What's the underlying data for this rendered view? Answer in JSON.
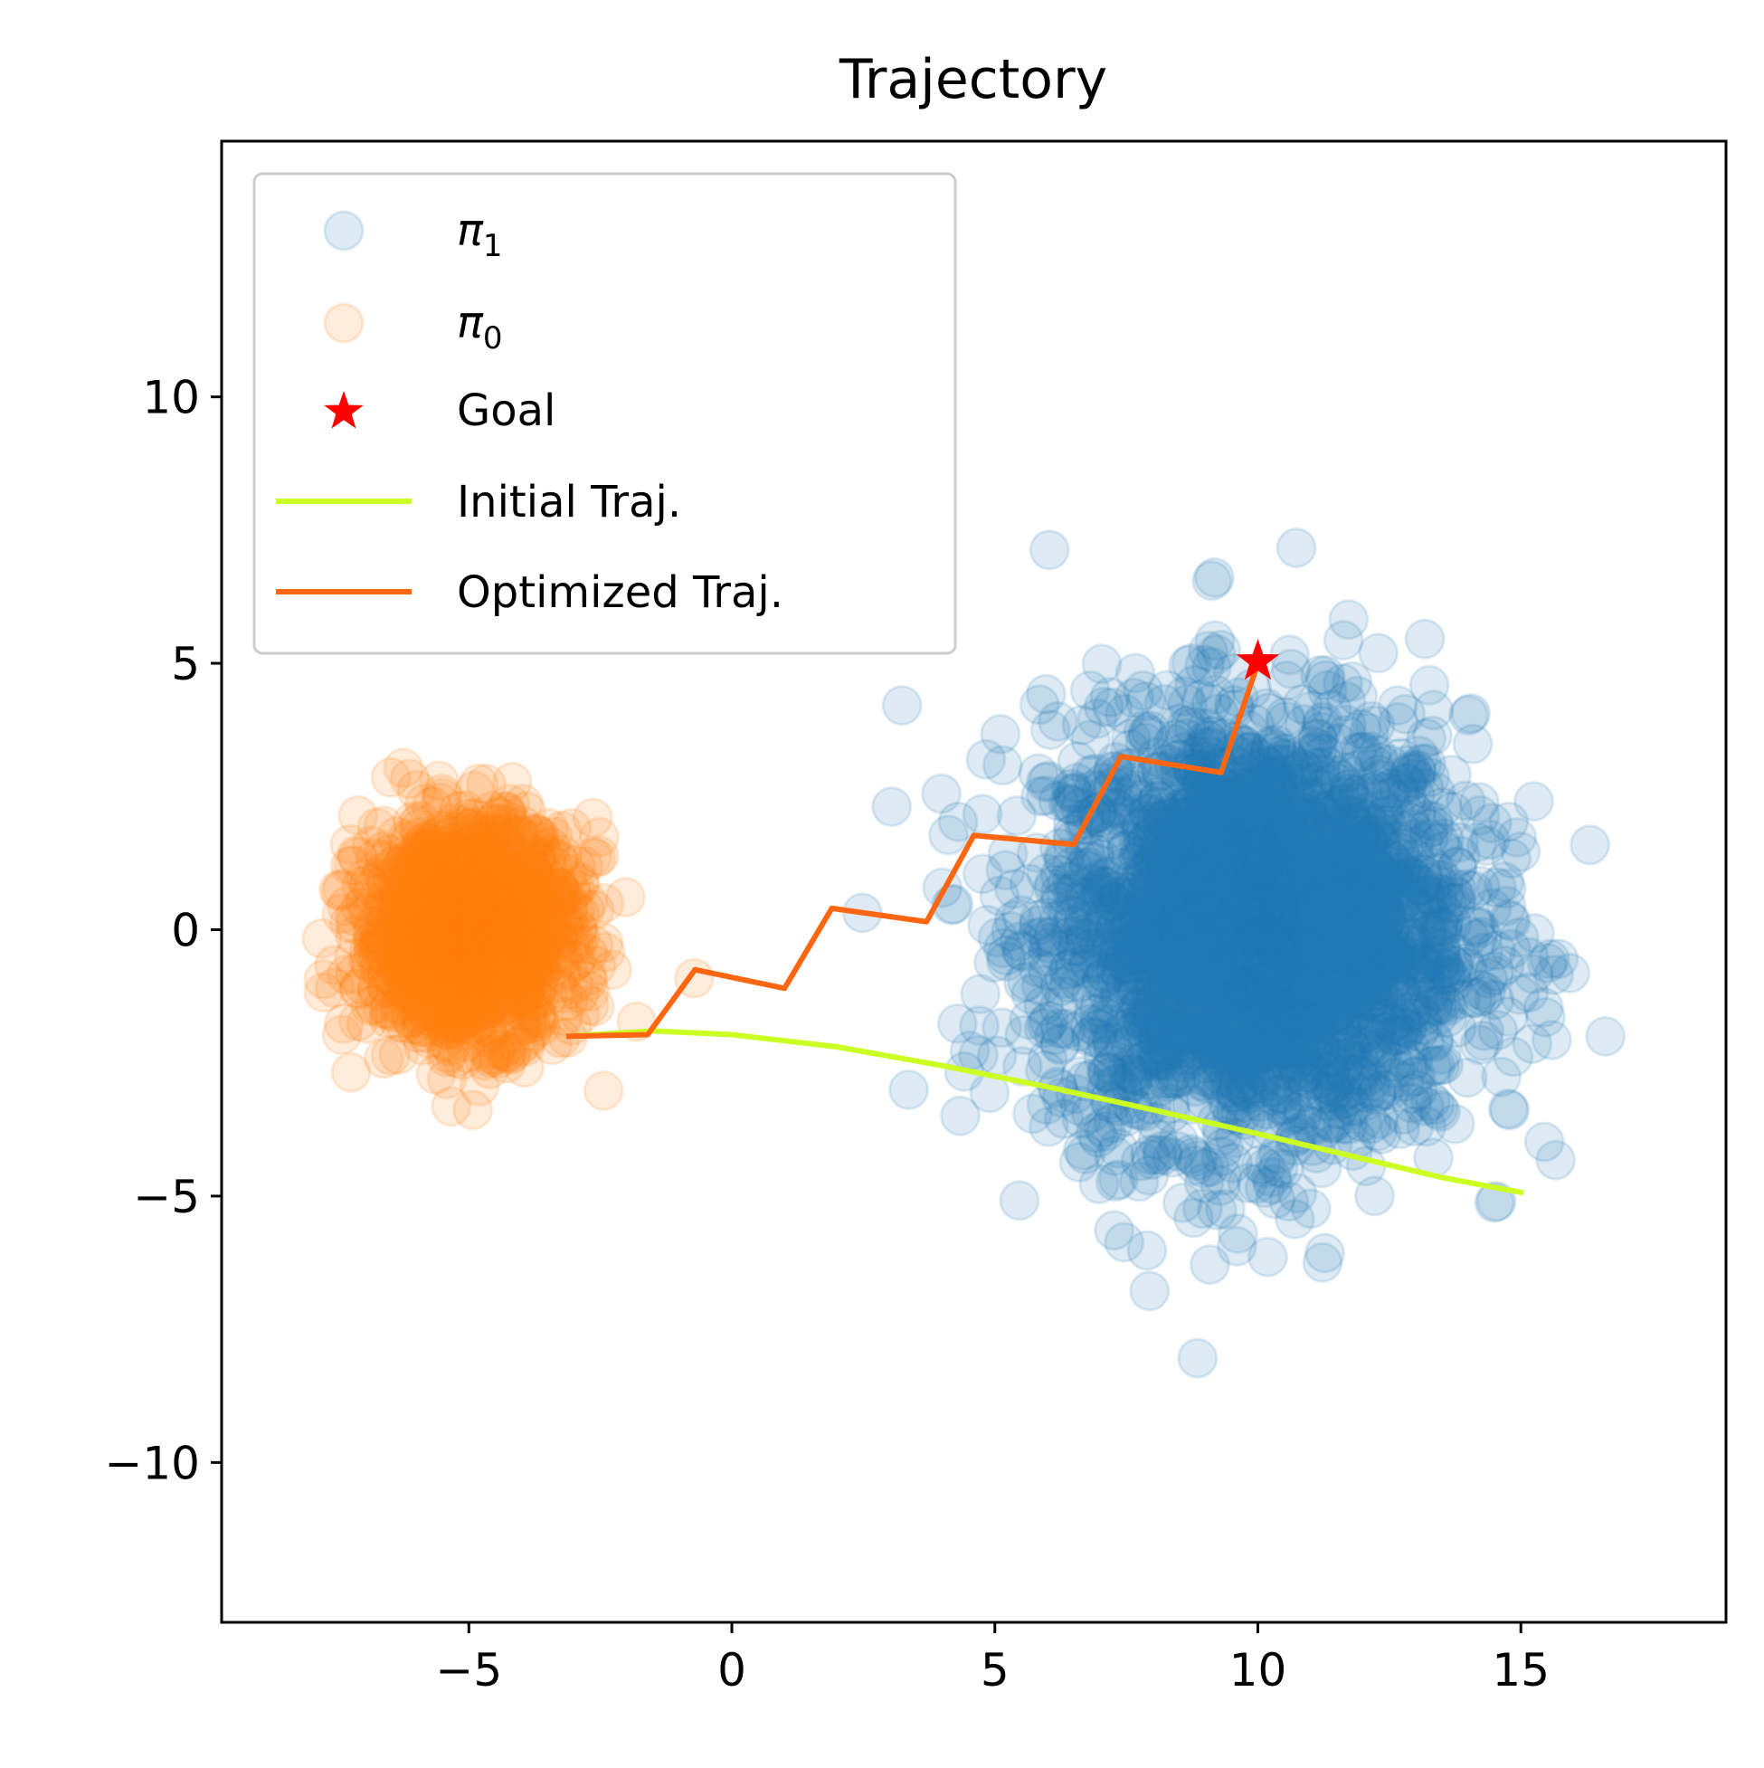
{
  "chart_data": {
    "type": "scatter",
    "title": "Trajectory",
    "xlabel": "",
    "ylabel": "",
    "xlim": [
      -9.7,
      18.9
    ],
    "ylim": [
      -13.0,
      14.8
    ],
    "x_ticks": [
      -5,
      0,
      5,
      10,
      15
    ],
    "y_ticks": [
      -10,
      -5,
      0,
      5,
      10
    ],
    "x_tick_labels": [
      "−5",
      "0",
      "5",
      "10",
      "15"
    ],
    "y_tick_labels": [
      "−10",
      "−5",
      "0",
      "5",
      "10"
    ],
    "grid": false,
    "legend_position": "upper-left",
    "scatter_series": [
      {
        "name": "π",
        "name_subscript": "1",
        "color": "#1f77b4",
        "alpha": 0.15,
        "distribution": "gaussian",
        "center": [
          10.0,
          0.0
        ],
        "std": [
          2.0,
          2.0
        ],
        "approx_extent_x": [
          1.5,
          17.5
        ],
        "approx_extent_y": [
          -7.9,
          9.5
        ]
      },
      {
        "name": "π",
        "name_subscript": "0",
        "color": "#ff7f0e",
        "alpha": 0.15,
        "distribution": "gaussian",
        "center": [
          -5.0,
          0.0
        ],
        "std": [
          1.0,
          1.0
        ],
        "approx_extent_x": [
          -8.2,
          -1.4
        ],
        "approx_extent_y": [
          -3.2,
          3.1
        ]
      }
    ],
    "goal": {
      "name": "Goal",
      "color": "#ff0000",
      "marker": "star",
      "x": 10.0,
      "y": 5.0
    },
    "lines": [
      {
        "name": "Initial Traj.",
        "color": "#ccff22",
        "points": [
          [
            -3.1,
            -2.0
          ],
          [
            -1.5,
            -1.9
          ],
          [
            0.0,
            -1.97
          ],
          [
            2.0,
            -2.2
          ],
          [
            4.0,
            -2.55
          ],
          [
            6.0,
            -2.95
          ],
          [
            8.0,
            -3.38
          ],
          [
            10.0,
            -3.83
          ],
          [
            12.0,
            -4.3
          ],
          [
            13.5,
            -4.65
          ],
          [
            15.0,
            -4.93
          ]
        ]
      },
      {
        "name": "Optimized Traj.",
        "color": "#ff6611",
        "points": [
          [
            -3.1,
            -2.0
          ],
          [
            -1.6,
            -1.97
          ],
          [
            -0.7,
            -0.75
          ],
          [
            1.0,
            -1.1
          ],
          [
            1.9,
            0.4
          ],
          [
            3.7,
            0.15
          ],
          [
            4.6,
            1.77
          ],
          [
            6.5,
            1.6
          ],
          [
            7.4,
            3.25
          ],
          [
            9.3,
            2.95
          ],
          [
            10.0,
            5.0
          ]
        ]
      }
    ]
  }
}
